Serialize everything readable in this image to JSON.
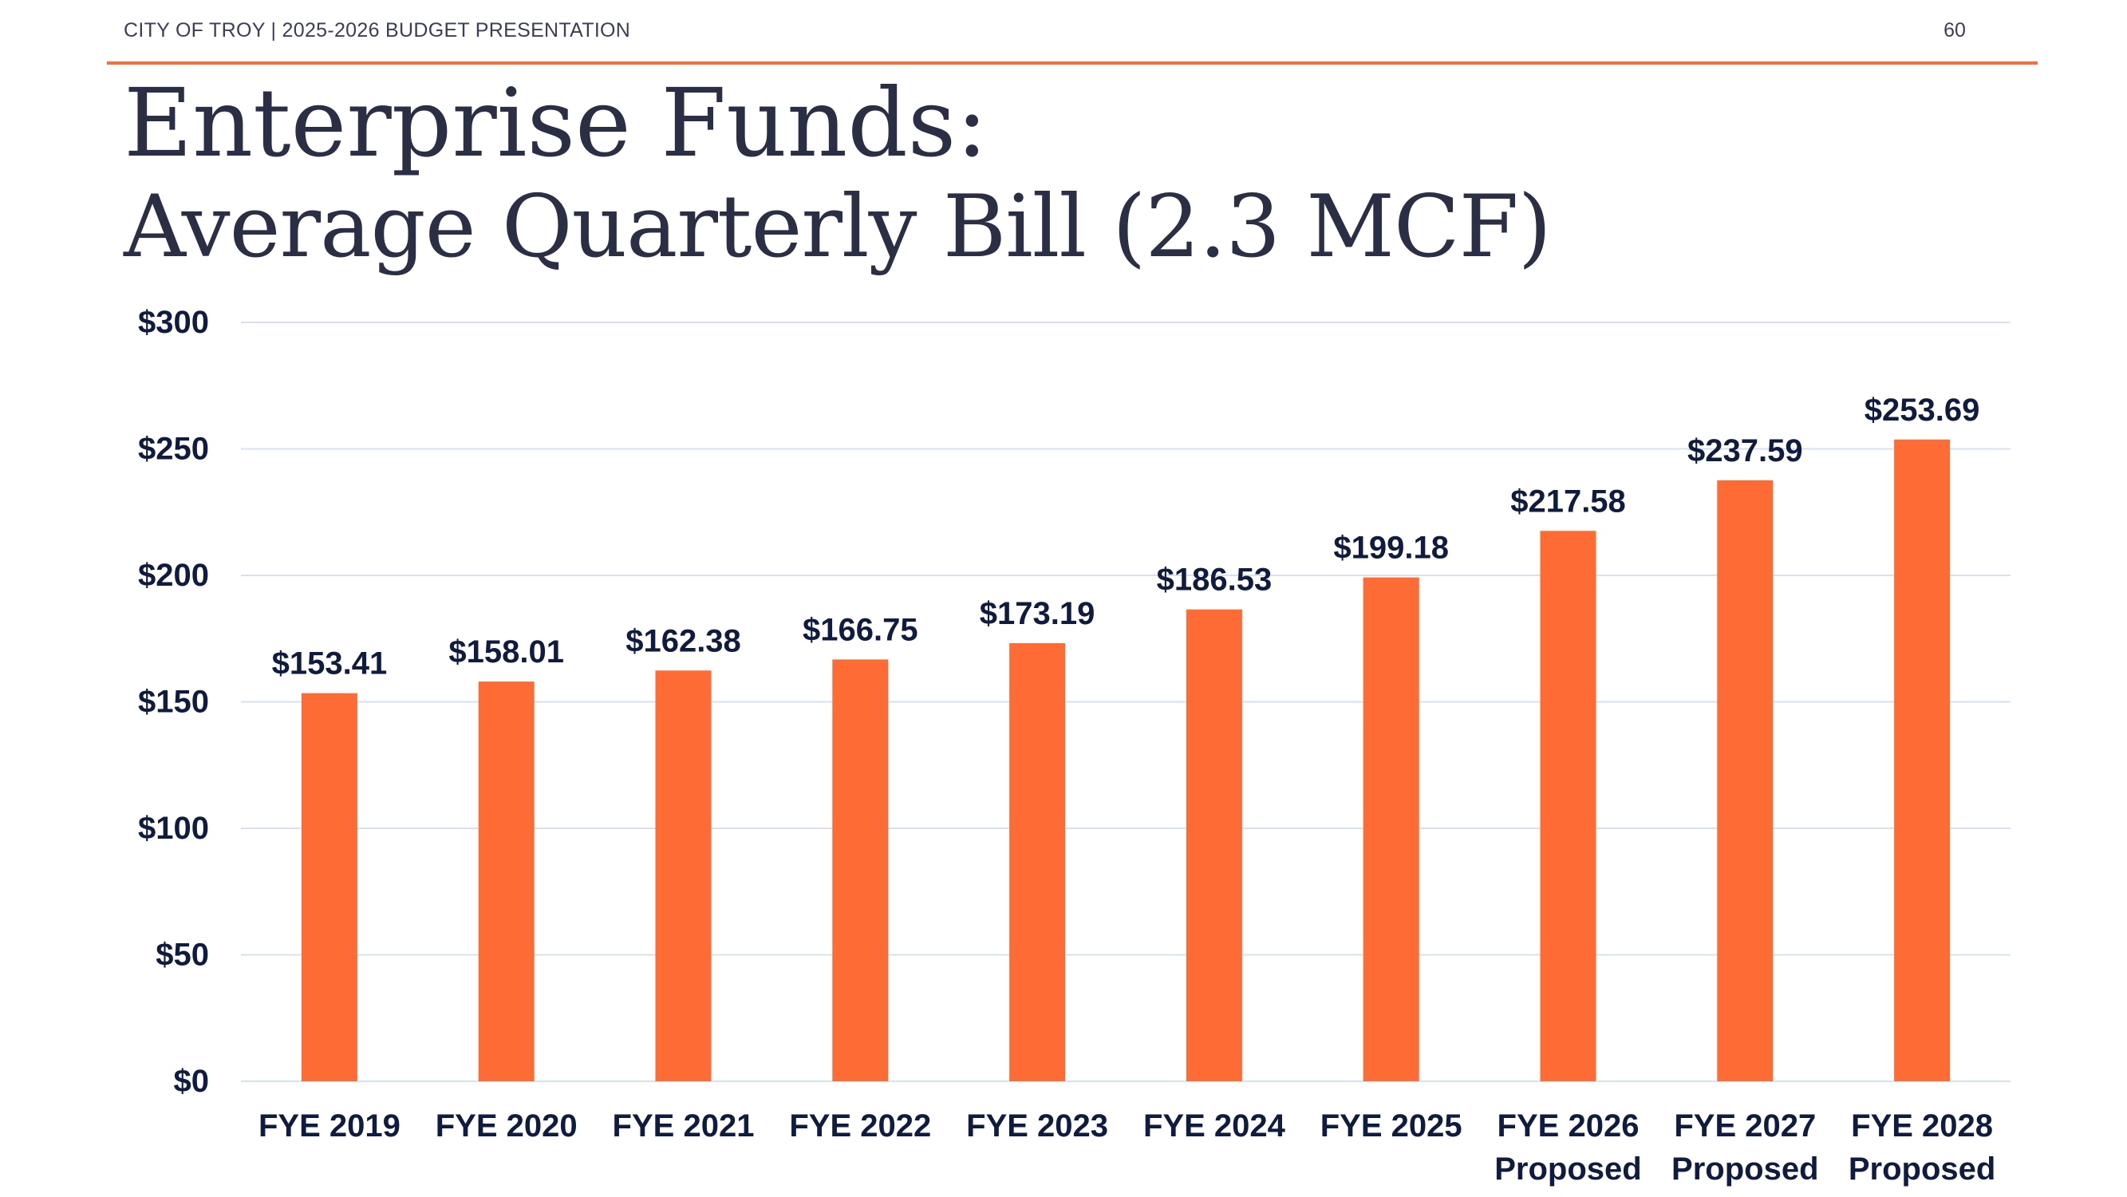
{
  "header": {
    "left_text": "CITY OF TROY | 2025-2026 BUDGET PRESENTATION",
    "page_number": "60"
  },
  "slide": {
    "title": "Enterprise Funds:",
    "subtitle": "Average Quarterly Bill (2.3 MCF)"
  },
  "colors": {
    "accent": "#ff6b35",
    "text_dark": "#0f1c3f",
    "gridline": "#d6e2f0"
  },
  "chart_data": {
    "type": "bar",
    "categories": [
      [
        "FYE 2019"
      ],
      [
        "FYE 2020"
      ],
      [
        "FYE 2021"
      ],
      [
        "FYE 2022"
      ],
      [
        "FYE 2023"
      ],
      [
        "FYE 2024"
      ],
      [
        "FYE 2025"
      ],
      [
        "FYE 2026",
        "Proposed"
      ],
      [
        "FYE 2027",
        "Proposed"
      ],
      [
        "FYE 2028",
        "Proposed"
      ]
    ],
    "values": [
      153.41,
      158.01,
      162.38,
      166.75,
      173.19,
      186.53,
      199.18,
      217.58,
      237.59,
      253.69
    ],
    "data_labels": [
      "$153.41",
      "$158.01",
      "$162.38",
      "$166.75",
      "$173.19",
      "$186.53",
      "$199.18",
      "$217.58",
      "$237.59",
      "$253.69"
    ],
    "y_ticks": [
      0,
      50,
      100,
      150,
      200,
      250,
      300
    ],
    "y_tick_labels": [
      "$0",
      "$50",
      "$100",
      "$150",
      "$200",
      "$250",
      "$300"
    ],
    "ylim": [
      0,
      300
    ],
    "grid": true,
    "xlabel": "",
    "ylabel": ""
  }
}
